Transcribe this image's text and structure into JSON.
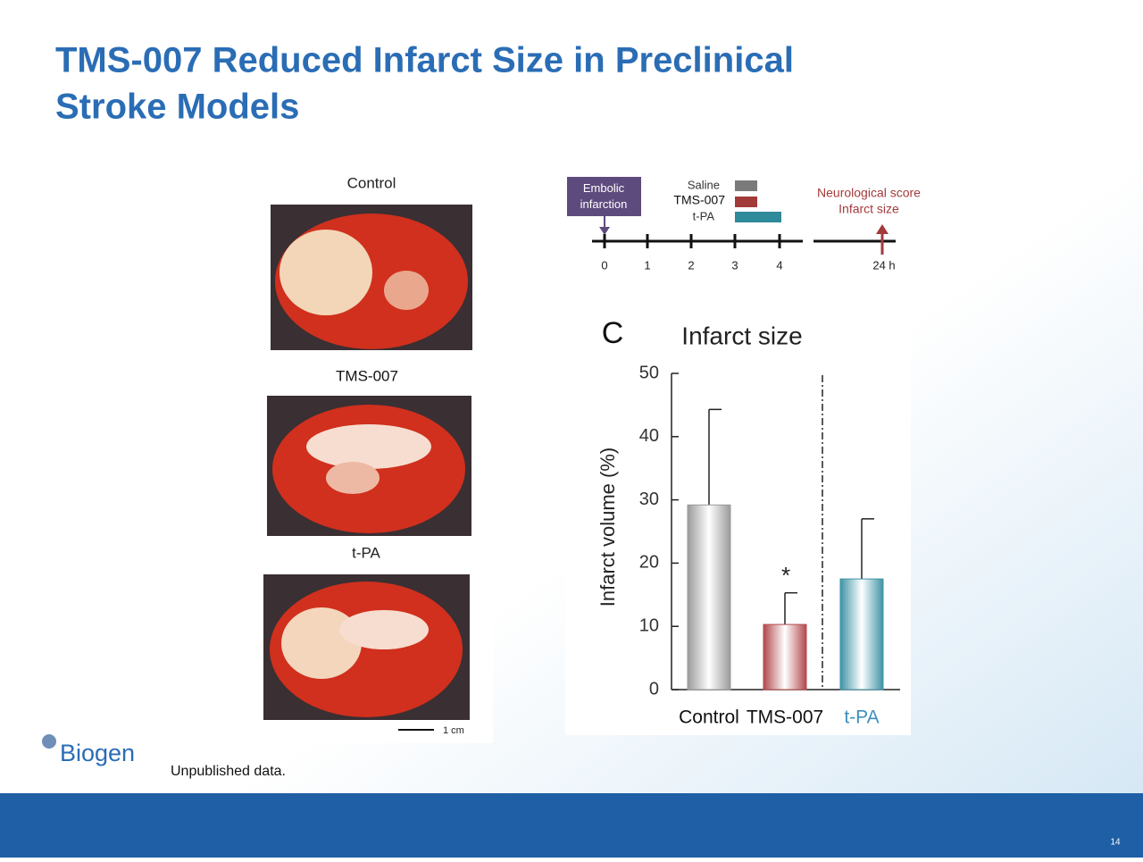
{
  "slide": {
    "title_lines": [
      "TMS-007 Reduced Infarct Size in Preclinical",
      "Stroke Models"
    ],
    "footnote": "Unpublished data.",
    "page_number": "14",
    "logo": "Biogen"
  },
  "brains": {
    "labels": [
      "Control",
      "TMS-007",
      "t-PA"
    ],
    "scale": "1 cm"
  },
  "timeline": {
    "event": "Embolic infarction",
    "treatments": [
      "Saline",
      "TMS-007",
      "t-PA"
    ],
    "outcomes": [
      "Neurological score",
      "Infarct size"
    ],
    "ticks": [
      "0",
      "1",
      "2",
      "3",
      "4",
      "24 h"
    ]
  },
  "chart_data": {
    "type": "bar",
    "panel": "C",
    "title": "Infarct size",
    "y_label": "Infarct volume (%)",
    "categories": [
      "Control",
      "TMS-007",
      "t-PA"
    ],
    "values": [
      29.2,
      10.3,
      17.5
    ],
    "errors": [
      15.1,
      5.0,
      9.5
    ],
    "colors": [
      "#9a9a9a",
      "#b24a4e",
      "#3f93a6"
    ],
    "label_colors": [
      "#111111",
      "#111111",
      "#3f8fc0"
    ],
    "annotation": "*",
    "ylim": [
      0,
      50
    ],
    "yticks": [
      0,
      10,
      20,
      30,
      40,
      50
    ]
  }
}
